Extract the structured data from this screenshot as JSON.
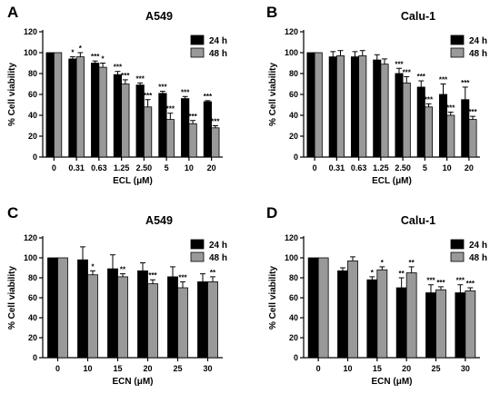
{
  "chart_data": [
    {
      "type": "bar",
      "panel_label": "A",
      "title": "A549",
      "xlabel": "ECL (μM)",
      "ylabel": "% Cell viability",
      "ylim": [
        0,
        120
      ],
      "yticks": [
        0,
        20,
        40,
        60,
        80,
        100,
        120
      ],
      "categories": [
        "0",
        "0.31",
        "0.63",
        "1.25",
        "2.50",
        "5",
        "10",
        "20"
      ],
      "series": [
        {
          "name": "24 h",
          "color": "#000000",
          "values": [
            100,
            94,
            90,
            79,
            69,
            61,
            56,
            53
          ],
          "errors": [
            0,
            2,
            2,
            3,
            2,
            2,
            2,
            1
          ],
          "significance": [
            "",
            "*",
            "***",
            "***",
            "***",
            "***",
            "***",
            "***"
          ]
        },
        {
          "name": "48 h",
          "color": "#999999",
          "values": [
            100,
            96,
            86,
            70,
            48,
            36,
            32,
            28
          ],
          "errors": [
            0,
            4,
            4,
            4,
            7,
            6,
            3,
            2
          ],
          "significance": [
            "",
            "*",
            "*",
            "***",
            "***",
            "***",
            "***",
            "***"
          ]
        }
      ],
      "legend": "top-right",
      "grid": false
    },
    {
      "type": "bar",
      "panel_label": "B",
      "title": "Calu-1",
      "xlabel": "ECL (μM)",
      "ylabel": "% Cell viability",
      "ylim": [
        0,
        120
      ],
      "yticks": [
        0,
        20,
        40,
        60,
        80,
        100,
        120
      ],
      "categories": [
        "0",
        "0.31",
        "0.63",
        "1.25",
        "2.50",
        "5",
        "10",
        "20"
      ],
      "series": [
        {
          "name": "24 h",
          "color": "#000000",
          "values": [
            100,
            96,
            96,
            93,
            80,
            67,
            60,
            55
          ],
          "errors": [
            0,
            5,
            5,
            5,
            5,
            6,
            10,
            12
          ],
          "significance": [
            "",
            "",
            "",
            "",
            "***",
            "***",
            "***",
            "***"
          ]
        },
        {
          "name": "48 h",
          "color": "#999999",
          "values": [
            100,
            97,
            97,
            89,
            71,
            48,
            40,
            36
          ],
          "errors": [
            0,
            5,
            5,
            5,
            6,
            3,
            3,
            3
          ],
          "significance": [
            "",
            "",
            "",
            "",
            "***",
            "***",
            "***",
            "***"
          ]
        }
      ],
      "legend": "top-right",
      "grid": false
    },
    {
      "type": "bar",
      "panel_label": "C",
      "title": "A549",
      "xlabel": "ECN (μM)",
      "ylabel": "% Cell viability",
      "ylim": [
        0,
        120
      ],
      "yticks": [
        0,
        20,
        40,
        60,
        80,
        100,
        120
      ],
      "categories": [
        "0",
        "10",
        "15",
        "20",
        "25",
        "30"
      ],
      "series": [
        {
          "name": "24 h",
          "color": "#000000",
          "values": [
            100,
            98,
            89,
            87,
            81,
            76
          ],
          "errors": [
            0,
            13,
            14,
            8,
            10,
            8
          ],
          "significance": [
            "",
            "",
            "",
            "",
            "",
            ""
          ]
        },
        {
          "name": "48 h",
          "color": "#999999",
          "values": [
            100,
            83,
            81,
            74,
            70,
            76
          ],
          "errors": [
            0,
            4,
            3,
            4,
            6,
            5
          ],
          "significance": [
            "",
            "*",
            "**",
            "***",
            "***",
            "**"
          ]
        }
      ],
      "legend": "top-right",
      "grid": false
    },
    {
      "type": "bar",
      "panel_label": "D",
      "title": "Calu-1",
      "xlabel": "ECN (μM)",
      "ylabel": "% Cell viability",
      "ylim": [
        0,
        120
      ],
      "yticks": [
        0,
        20,
        40,
        60,
        80,
        100,
        120
      ],
      "categories": [
        "0",
        "10",
        "15",
        "20",
        "25",
        "30"
      ],
      "series": [
        {
          "name": "24 h",
          "color": "#000000",
          "values": [
            100,
            87,
            78,
            70,
            65,
            65
          ],
          "errors": [
            0,
            3,
            3,
            10,
            8,
            8
          ],
          "significance": [
            "",
            "",
            "*",
            "**",
            "***",
            "***"
          ]
        },
        {
          "name": "48 h",
          "color": "#999999",
          "values": [
            100,
            97,
            88,
            85,
            68,
            67
          ],
          "errors": [
            0,
            4,
            3,
            6,
            3,
            3
          ],
          "significance": [
            "",
            "",
            "*",
            "**",
            "***",
            "***"
          ]
        }
      ],
      "legend": "top-right",
      "grid": false
    }
  ]
}
